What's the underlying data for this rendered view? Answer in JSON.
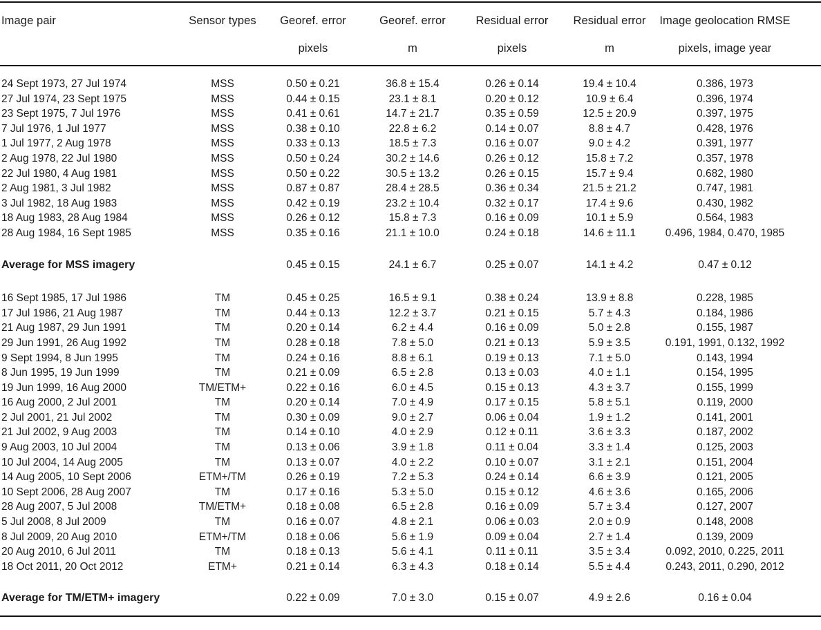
{
  "table": {
    "column_names": [
      "image-pair",
      "sensor-types",
      "georef-error-pixels",
      "georef-error-m",
      "residual-error-pixels",
      "residual-error-m",
      "geolocation-rmse"
    ],
    "columns": [
      {
        "line1": "Image pair",
        "line2": ""
      },
      {
        "line1": "Sensor types",
        "line2": ""
      },
      {
        "line1": "Georef. error",
        "line2": "pixels"
      },
      {
        "line1": "Georef. error",
        "line2": "m"
      },
      {
        "line1": "Residual error",
        "line2": "pixels"
      },
      {
        "line1": "Residual error",
        "line2": "m"
      },
      {
        "line1": "Image geolocation RMSE",
        "line2": "pixels, image year"
      }
    ],
    "sections": [
      {
        "rows": [
          [
            "24 Sept 1973, 27 Jul 1974",
            "MSS",
            "0.50 ± 0.21",
            "36.8 ± 15.4",
            "0.26 ± 0.14",
            "19.4 ± 10.4",
            "0.386, 1973"
          ],
          [
            "27 Jul 1974, 23 Sept 1975",
            "MSS",
            "0.44 ± 0.15",
            "23.1 ± 8.1",
            "0.20 ± 0.12",
            "10.9 ± 6.4",
            "0.396, 1974"
          ],
          [
            "23 Sept 1975, 7 Jul 1976",
            "MSS",
            "0.41 ± 0.61",
            "14.7 ± 21.7",
            "0.35 ± 0.59",
            "12.5 ± 20.9",
            "0.397, 1975"
          ],
          [
            "7 Jul 1976, 1 Jul 1977",
            "MSS",
            "0.38 ± 0.10",
            "22.8 ± 6.2",
            "0.14 ± 0.07",
            "8.8 ± 4.7",
            "0.428, 1976"
          ],
          [
            "1 Jul 1977, 2 Aug 1978",
            "MSS",
            "0.33 ± 0.13",
            "18.5 ± 7.3",
            "0.16 ± 0.07",
            "9.0 ± 4.2",
            "0.391, 1977"
          ],
          [
            "2 Aug 1978, 22 Jul 1980",
            "MSS",
            "0.50 ± 0.24",
            "30.2 ± 14.6",
            "0.26 ± 0.12",
            "15.8 ± 7.2",
            "0.357, 1978"
          ],
          [
            "22 Jul 1980, 4 Aug 1981",
            "MSS",
            "0.50 ± 0.22",
            "30.5 ± 13.2",
            "0.26 ± 0.15",
            "15.7 ± 9.4",
            "0.682, 1980"
          ],
          [
            "2 Aug 1981, 3 Jul 1982",
            "MSS",
            "0.87 ± 0.87",
            "28.4 ± 28.5",
            "0.36 ± 0.34",
            "21.5 ± 21.2",
            "0.747, 1981"
          ],
          [
            "3 Jul 1982, 18 Aug 1983",
            "MSS",
            "0.42 ± 0.19",
            "23.2 ± 10.4",
            "0.32 ± 0.17",
            "17.4 ± 9.6",
            "0.430, 1982"
          ],
          [
            "18 Aug 1983, 28 Aug 1984",
            "MSS",
            "0.26 ± 0.12",
            "15.8 ± 7.3",
            "0.16 ± 0.09",
            "10.1 ± 5.9",
            "0.564, 1983"
          ],
          [
            "28 Aug 1984, 16 Sept 1985",
            "MSS",
            "0.35 ± 0.16",
            "21.1 ± 10.0",
            "0.24 ± 0.18",
            "14.6 ± 11.1",
            "0.496, 1984, 0.470, 1985"
          ]
        ],
        "summary": [
          "Average for MSS imagery",
          "",
          "0.45 ± 0.15",
          "24.1 ± 6.7",
          "0.25 ± 0.07",
          "14.1 ± 4.2",
          "0.47 ± 0.12"
        ]
      },
      {
        "rows": [
          [
            "16 Sept 1985, 17 Jul 1986",
            "TM",
            "0.45 ± 0.25",
            "16.5 ± 9.1",
            "0.38 ± 0.24",
            "13.9 ± 8.8",
            "0.228, 1985"
          ],
          [
            "17 Jul 1986, 21 Aug 1987",
            "TM",
            "0.44 ± 0.13",
            "12.2 ± 3.7",
            "0.21 ± 0.15",
            "5.7 ± 4.3",
            "0.184, 1986"
          ],
          [
            "21 Aug 1987, 29 Jun 1991",
            "TM",
            "0.20 ± 0.14",
            "6.2 ± 4.4",
            "0.16 ± 0.09",
            "5.0 ± 2.8",
            "0.155, 1987"
          ],
          [
            "29 Jun 1991, 26 Aug 1992",
            "TM",
            "0.28 ± 0.18",
            "7.8 ± 5.0",
            "0.21 ± 0.13",
            "5.9 ± 3.5",
            "0.191, 1991, 0.132, 1992"
          ],
          [
            "9 Sept 1994, 8 Jun 1995",
            "TM",
            "0.24 ± 0.16",
            "8.8 ± 6.1",
            "0.19 ± 0.13",
            "7.1 ± 5.0",
            "0.143, 1994"
          ],
          [
            "8 Jun 1995, 19 Jun 1999",
            "TM",
            "0.21 ± 0.09",
            "6.5 ± 2.8",
            "0.13 ± 0.03",
            "4.0 ± 1.1",
            "0.154, 1995"
          ],
          [
            "19 Jun 1999, 16 Aug 2000",
            "TM/ETM+",
            "0.22 ± 0.16",
            "6.0 ± 4.5",
            "0.15 ± 0.13",
            "4.3 ± 3.7",
            "0.155, 1999"
          ],
          [
            "16 Aug 2000, 2 Jul 2001",
            "TM",
            "0.20 ± 0.14",
            "7.0 ± 4.9",
            "0.17 ± 0.15",
            "5.8 ± 5.1",
            "0.119, 2000"
          ],
          [
            "2 Jul 2001, 21 Jul 2002",
            "TM",
            "0.30 ± 0.09",
            "9.0 ± 2.7",
            "0.06 ± 0.04",
            "1.9 ± 1.2",
            "0.141, 2001"
          ],
          [
            "21 Jul 2002, 9 Aug 2003",
            "TM",
            "0.14 ± 0.10",
            "4.0 ± 2.9",
            "0.12 ± 0.11",
            "3.6 ± 3.3",
            "0.187, 2002"
          ],
          [
            "9 Aug 2003, 10 Jul 2004",
            "TM",
            "0.13 ± 0.06",
            "3.9 ± 1.8",
            "0.11 ± 0.04",
            "3.3 ± 1.4",
            "0.125, 2003"
          ],
          [
            "10 Jul 2004, 14 Aug 2005",
            "TM",
            "0.13 ± 0.07",
            "4.0 ± 2.2",
            "0.10 ± 0.07",
            "3.1 ± 2.1",
            "0.151, 2004"
          ],
          [
            "14 Aug 2005, 10 Sept 2006",
            "ETM+/TM",
            "0.26 ± 0.19",
            "7.2 ± 5.3",
            "0.24 ± 0.14",
            "6.6 ± 3.9",
            "0.121, 2005"
          ],
          [
            "10 Sept 2006, 28 Aug 2007",
            "TM",
            "0.17 ± 0.16",
            "5.3 ± 5.0",
            "0.15 ± 0.12",
            "4.6 ± 3.6",
            "0.165, 2006"
          ],
          [
            "28 Aug 2007, 5 Jul 2008",
            "TM/ETM+",
            "0.18 ± 0.08",
            "6.5 ± 2.8",
            "0.16 ± 0.09",
            "5.7 ± 3.4",
            "0.127, 2007"
          ],
          [
            "5 Jul 2008, 8 Jul 2009",
            "TM",
            "0.16 ± 0.07",
            "4.8 ± 2.1",
            "0.06 ± 0.03",
            "2.0 ± 0.9",
            "0.148, 2008"
          ],
          [
            "8 Jul 2009, 20 Aug 2010",
            "ETM+/TM",
            "0.18 ± 0.06",
            "5.6 ± 1.9",
            "0.09 ± 0.04",
            "2.7 ± 1.4",
            "0.139, 2009"
          ],
          [
            "20 Aug 2010, 6 Jul 2011",
            "TM",
            "0.18 ± 0.13",
            "5.6 ± 4.1",
            "0.11 ± 0.11",
            "3.5 ± 3.4",
            "0.092, 2010, 0.225, 2011"
          ],
          [
            "18 Oct 2011, 20 Oct 2012",
            "ETM+",
            "0.21 ± 0.14",
            "6.3 ± 4.3",
            "0.18 ± 0.14",
            "5.5 ± 4.4",
            "0.243, 2011, 0.290, 2012"
          ]
        ],
        "summary": [
          "Average for TM/ETM+ imagery",
          "",
          "0.22 ± 0.09",
          "7.0 ± 3.0",
          "0.15 ± 0.07",
          "4.9 ± 2.6",
          "0.16 ± 0.04"
        ]
      }
    ]
  }
}
